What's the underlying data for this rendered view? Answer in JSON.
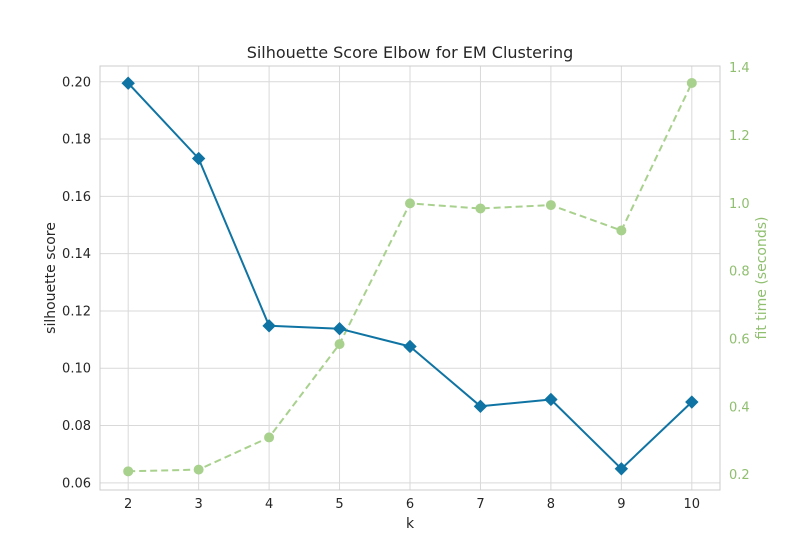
{
  "chart_data": {
    "type": "line",
    "title": "Silhouette Score Elbow for EM Clustering",
    "xlabel": "k",
    "ylabel": "silhouette score",
    "y2label": "fit time (seconds)",
    "x": [
      2,
      3,
      4,
      5,
      6,
      7,
      8,
      9,
      10
    ],
    "xlim": [
      1.6,
      10.4
    ],
    "ylim": [
      0.0575,
      0.2055
    ],
    "y2lim": [
      0.155,
      1.405
    ],
    "x_ticks": [
      "2",
      "3",
      "4",
      "5",
      "6",
      "7",
      "8",
      "9",
      "10"
    ],
    "y_ticks": [
      0.06,
      0.08,
      0.1,
      0.12,
      0.14,
      0.16,
      0.18,
      0.2
    ],
    "y_tick_labels": [
      "0.06",
      "0.08",
      "0.10",
      "0.12",
      "0.14",
      "0.16",
      "0.18",
      "0.20"
    ],
    "y2_ticks": [
      0.2,
      0.4,
      0.6,
      0.8,
      1.0,
      1.2,
      1.4
    ],
    "y2_tick_labels": [
      "0.2",
      "0.4",
      "0.6",
      "0.8",
      "1.0",
      "1.2",
      "1.4"
    ],
    "grid": true,
    "series": [
      {
        "axis": "left",
        "marker": "diamond",
        "line_style": "solid",
        "color": "#0f74a3",
        "values": [
          0.1995,
          0.1732,
          0.1148,
          0.1138,
          0.1076,
          0.0867,
          0.0891,
          0.0649,
          0.0882
        ]
      },
      {
        "axis": "right",
        "marker": "circle",
        "line_style": "dashed",
        "color": "#a9d18e",
        "values": [
          0.21,
          0.215,
          0.31,
          0.585,
          1.0,
          0.985,
          0.995,
          0.92,
          1.355
        ]
      }
    ]
  }
}
